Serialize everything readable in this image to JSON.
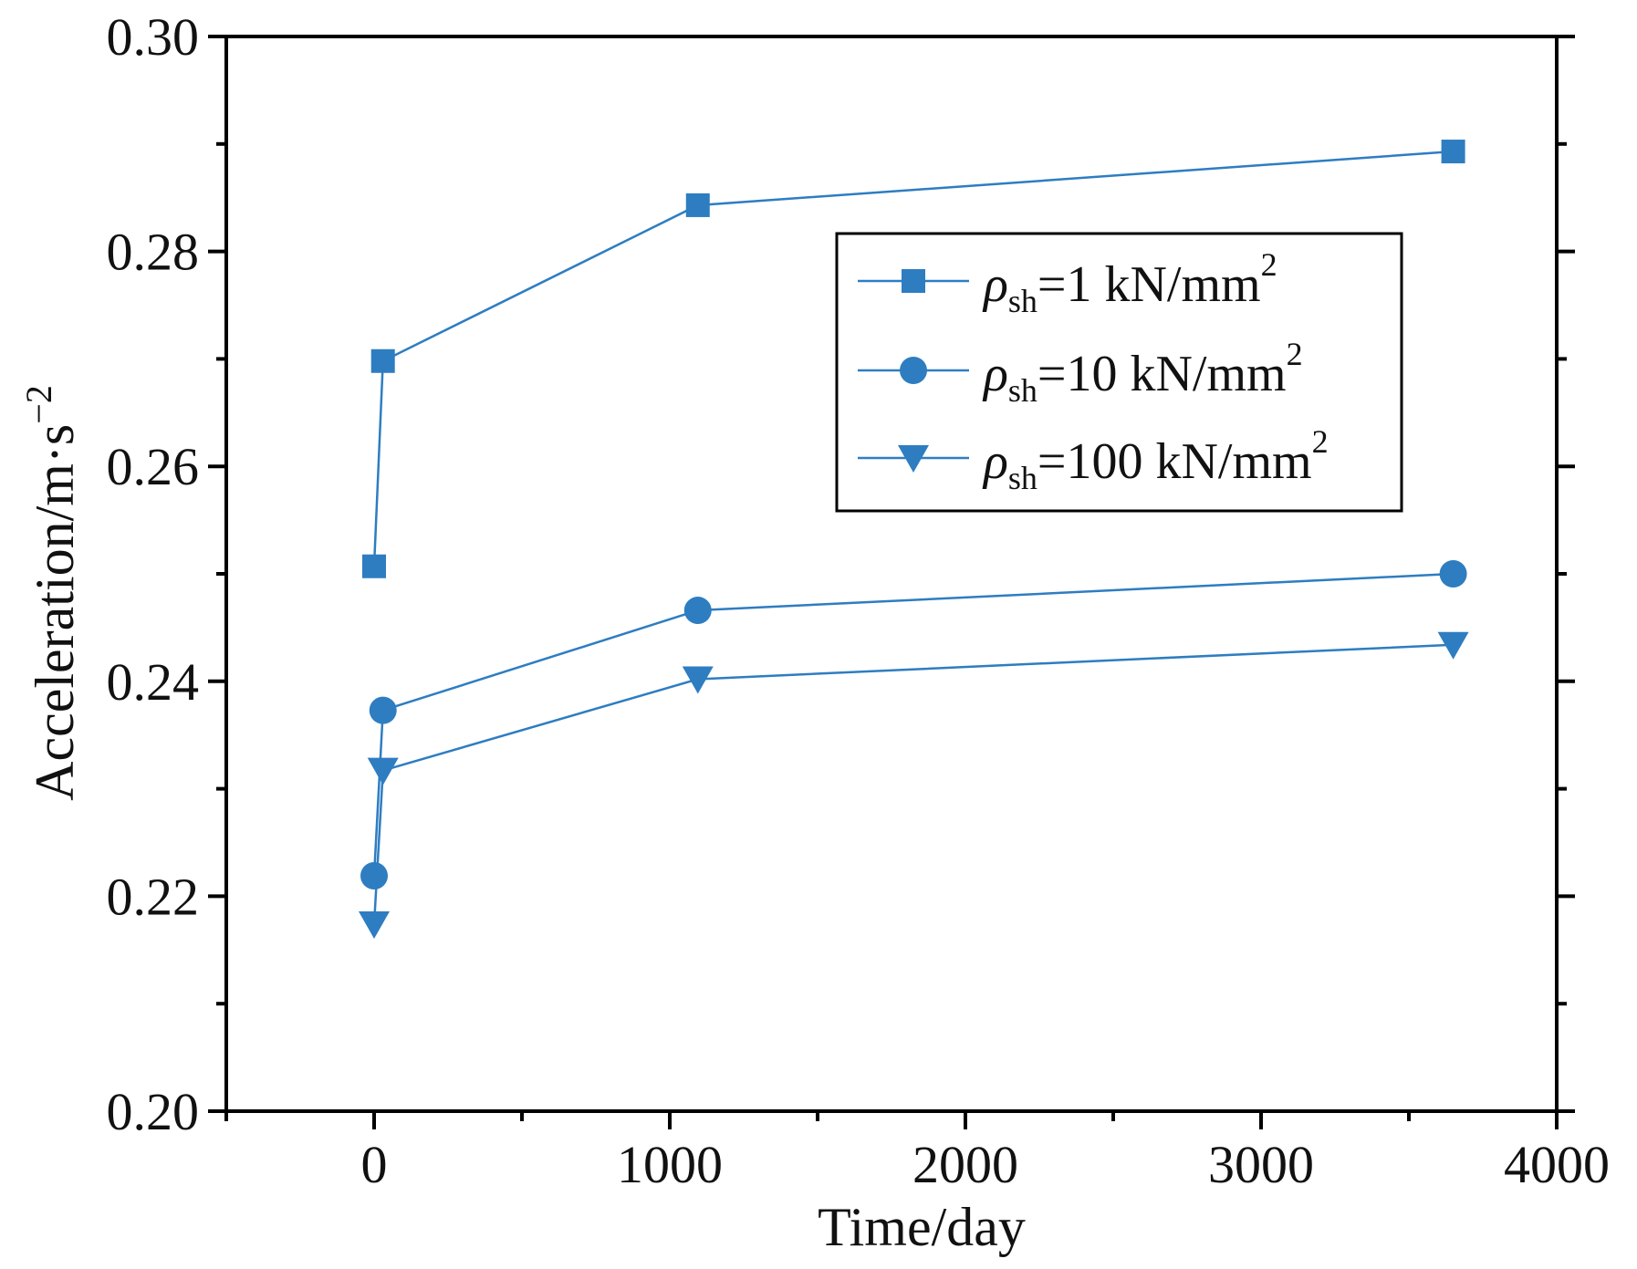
{
  "chart_data": {
    "type": "line",
    "title": "",
    "xlabel": "Time/day",
    "ylabel": "Acceleration/m·s",
    "ylabel_sup": "−2",
    "xlim": [
      -500,
      4000
    ],
    "ylim": [
      0.2,
      0.3
    ],
    "x_ticks": [
      0,
      1000,
      2000,
      3000,
      4000
    ],
    "x_tick_labels": [
      "0",
      "1000",
      "2000",
      "3000",
      "4000"
    ],
    "y_ticks": [
      0.2,
      0.22,
      0.24,
      0.26,
      0.28,
      0.3
    ],
    "y_tick_labels": [
      "0.20",
      "0.22",
      "0.24",
      "0.26",
      "0.28",
      "0.30"
    ],
    "grid": false,
    "legend_position": "top-right",
    "color": "#2e7dc1",
    "series": [
      {
        "name": "ρsh=1 kN/mm2",
        "legend_symbol": "ρ",
        "legend_sub": "sh",
        "legend_rest": "=1 kN/mm",
        "legend_sup": "2",
        "marker": "square",
        "x": [
          0,
          30,
          1095,
          3650
        ],
        "y": [
          0.2507,
          0.2698,
          0.2843,
          0.2893
        ]
      },
      {
        "name": "ρsh=10 kN/mm2",
        "legend_symbol": "ρ",
        "legend_sub": "sh",
        "legend_rest": "=10 kN/mm",
        "legend_sup": "2",
        "marker": "circle",
        "x": [
          0,
          30,
          1095,
          3650
        ],
        "y": [
          0.2219,
          0.2373,
          0.2466,
          0.25
        ]
      },
      {
        "name": "ρsh=100 kN/mm2",
        "legend_symbol": "ρ",
        "legend_sub": "sh",
        "legend_rest": "=100 kN/mm",
        "legend_sup": "2",
        "marker": "triangle-down",
        "x": [
          0,
          30,
          1095,
          3650
        ],
        "y": [
          0.2174,
          0.2317,
          0.2402,
          0.2434
        ]
      }
    ]
  }
}
